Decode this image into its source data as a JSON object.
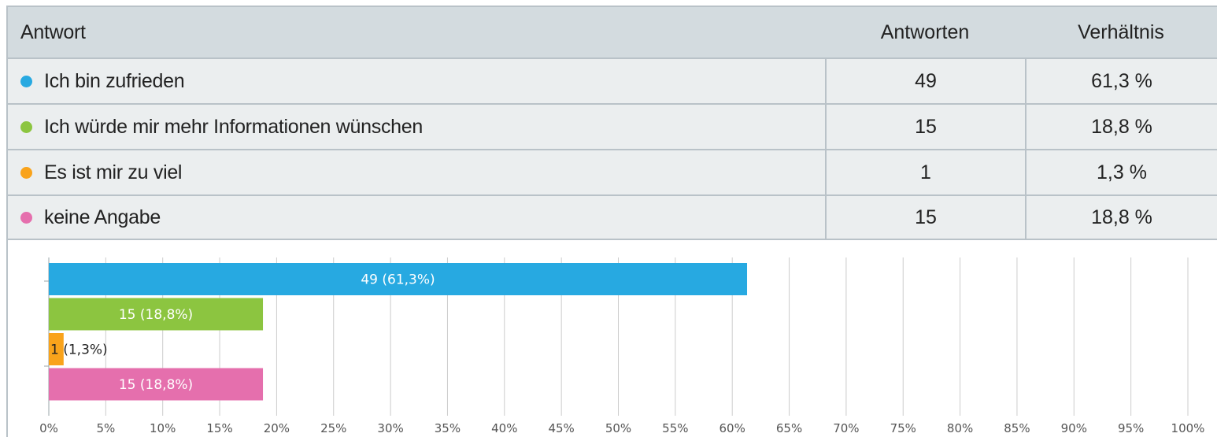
{
  "table": {
    "headers": {
      "answer": "Antwort",
      "count": "Antworten",
      "ratio": "Verhältnis"
    },
    "rows": [
      {
        "label": "Ich bin zufrieden",
        "count": "49",
        "ratio": "61,3 %",
        "color": "#27a9e1"
      },
      {
        "label": "Ich würde mir mehr Informationen wünschen",
        "count": "15",
        "ratio": "18,8 %",
        "color": "#8cc540"
      },
      {
        "label": "Es ist mir zu viel",
        "count": "1",
        "ratio": "1,3 %",
        "color": "#f9a31b"
      },
      {
        "label": "keine Angabe",
        "count": "15",
        "ratio": "18,8 %",
        "color": "#e56fad"
      }
    ]
  },
  "chart_data": {
    "type": "bar",
    "orientation": "horizontal",
    "categories": [
      "Ich bin zufrieden",
      "Ich würde mir mehr Informationen wünschen",
      "Es ist mir zu viel",
      "keine Angabe"
    ],
    "values": [
      61.3,
      18.8,
      1.3,
      18.8
    ],
    "data_labels": [
      "49 (61,3%)",
      "15 (18,8%)",
      "1 (1,3%)",
      "15 (18,8%)"
    ],
    "colors": [
      "#27a9e1",
      "#8cc540",
      "#f9a31b",
      "#e56fad"
    ],
    "xlim": [
      0,
      100
    ],
    "x_ticks": [
      "0%",
      "5%",
      "10%",
      "15%",
      "20%",
      "25%",
      "30%",
      "35%",
      "40%",
      "45%",
      "50%",
      "55%",
      "60%",
      "65%",
      "70%",
      "75%",
      "80%",
      "85%",
      "90%",
      "95%",
      "100%"
    ],
    "grid": true
  }
}
